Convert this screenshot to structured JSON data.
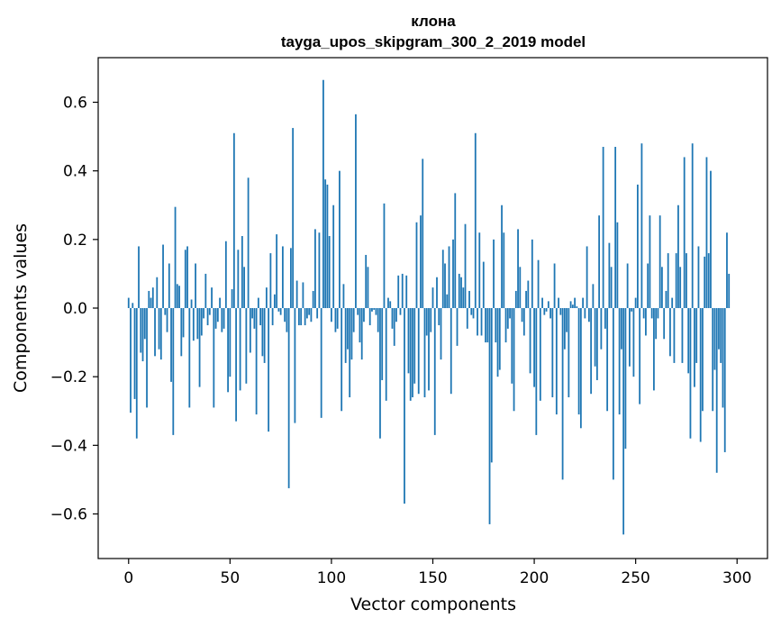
{
  "chart_data": {
    "type": "bar",
    "title": "клона",
    "subtitle": "tayga_upos_skipgram_300_2_2019 model",
    "xlabel": "Vector components",
    "ylabel": "Components values",
    "xlim": [
      -15,
      315
    ],
    "ylim": [
      -0.73,
      0.73
    ],
    "xticks": [
      0,
      50,
      100,
      150,
      200,
      250,
      300
    ],
    "yticks": [
      -0.6,
      -0.4,
      -0.2,
      0.0,
      0.2,
      0.4,
      0.6
    ],
    "ytick_labels": [
      "−0.6",
      "−0.4",
      "−0.2",
      "0.0",
      "0.2",
      "0.4",
      "0.6"
    ],
    "xtick_labels": [
      "0",
      "50",
      "100",
      "150",
      "200",
      "250",
      "300"
    ],
    "bar_color": "#1f77b4",
    "values": [
      0.03,
      -0.305,
      0.015,
      -0.265,
      -0.38,
      0.18,
      -0.13,
      -0.155,
      -0.09,
      -0.29,
      0.05,
      0.03,
      0.06,
      -0.14,
      0.09,
      -0.12,
      -0.15,
      0.185,
      -0.02,
      -0.07,
      0.13,
      -0.215,
      -0.37,
      0.295,
      0.07,
      0.065,
      -0.14,
      -0.085,
      0.17,
      0.18,
      -0.29,
      0.025,
      -0.095,
      0.13,
      -0.09,
      -0.23,
      -0.08,
      -0.03,
      0.1,
      -0.05,
      -0.02,
      0.06,
      -0.29,
      -0.06,
      -0.04,
      0.03,
      -0.07,
      -0.06,
      0.195,
      -0.245,
      -0.2,
      0.055,
      0.51,
      -0.33,
      0.17,
      -0.24,
      0.21,
      0.12,
      -0.22,
      0.38,
      -0.13,
      -0.03,
      -0.06,
      -0.31,
      0.03,
      -0.05,
      -0.14,
      -0.16,
      0.06,
      -0.36,
      0.16,
      -0.05,
      0.04,
      0.215,
      -0.01,
      -0.02,
      0.18,
      -0.04,
      -0.07,
      -0.525,
      0.175,
      0.525,
      -0.335,
      0.08,
      -0.05,
      -0.05,
      0.075,
      -0.05,
      -0.03,
      -0.02,
      -0.04,
      0.05,
      0.23,
      -0.03,
      0.22,
      -0.32,
      0.665,
      0.375,
      0.36,
      0.21,
      -0.04,
      0.3,
      -0.07,
      -0.06,
      0.4,
      -0.3,
      0.07,
      -0.16,
      -0.12,
      -0.26,
      -0.15,
      -0.07,
      0.565,
      -0.02,
      -0.1,
      -0.15,
      -0.04,
      0.155,
      0.12,
      -0.05,
      -0.01,
      -0.005,
      -0.02,
      -0.07,
      -0.38,
      -0.21,
      0.305,
      -0.27,
      0.03,
      0.02,
      -0.06,
      -0.11,
      -0.04,
      0.095,
      -0.02,
      0.1,
      -0.57,
      0.095,
      -0.19,
      -0.27,
      -0.26,
      -0.22,
      0.25,
      -0.25,
      0.27,
      0.435,
      -0.26,
      -0.08,
      -0.24,
      -0.07,
      0.06,
      -0.37,
      0.09,
      -0.05,
      -0.15,
      0.17,
      0.13,
      0.04,
      0.18,
      -0.25,
      0.2,
      0.335,
      -0.11,
      0.1,
      0.09,
      0.06,
      0.245,
      -0.06,
      0.05,
      -0.02,
      -0.03,
      0.51,
      -0.08,
      0.22,
      -0.08,
      0.135,
      -0.1,
      -0.1,
      -0.63,
      -0.45,
      0.2,
      -0.1,
      -0.2,
      -0.18,
      0.3,
      0.22,
      -0.1,
      -0.06,
      -0.03,
      -0.22,
      -0.3,
      0.05,
      0.23,
      0.12,
      -0.04,
      -0.08,
      0.05,
      0.08,
      -0.19,
      0.2,
      -0.23,
      -0.37,
      0.14,
      -0.27,
      0.03,
      -0.02,
      -0.01,
      0.02,
      -0.03,
      -0.26,
      0.13,
      -0.31,
      0.03,
      -0.02,
      -0.5,
      -0.12,
      -0.07,
      -0.26,
      0.02,
      0.01,
      0.03,
      0.005,
      -0.31,
      -0.35,
      0.03,
      -0.03,
      0.18,
      -0.04,
      -0.25,
      0.07,
      -0.17,
      -0.21,
      0.27,
      -0.12,
      0.47,
      -0.06,
      -0.3,
      0.19,
      0.12,
      -0.5,
      0.47,
      0.25,
      -0.31,
      -0.12,
      -0.66,
      -0.41,
      0.13,
      -0.17,
      -0.01,
      -0.2,
      0.03,
      0.36,
      -0.28,
      0.48,
      -0.03,
      -0.08,
      0.13,
      0.27,
      -0.03,
      -0.24,
      -0.09,
      -0.03,
      0.27,
      0.12,
      -0.09,
      0.05,
      0.16,
      -0.14,
      0.03,
      -0.16,
      0.16,
      0.3,
      0.12,
      -0.16,
      0.44,
      0.16,
      -0.19,
      -0.38,
      0.48,
      -0.23,
      -0.16,
      0.18,
      -0.39,
      -0.3,
      0.15,
      0.44,
      0.16,
      0.4,
      -0.3,
      -0.18,
      -0.48,
      -0.12,
      -0.16,
      -0.29,
      -0.42,
      0.22,
      0.1
    ]
  }
}
